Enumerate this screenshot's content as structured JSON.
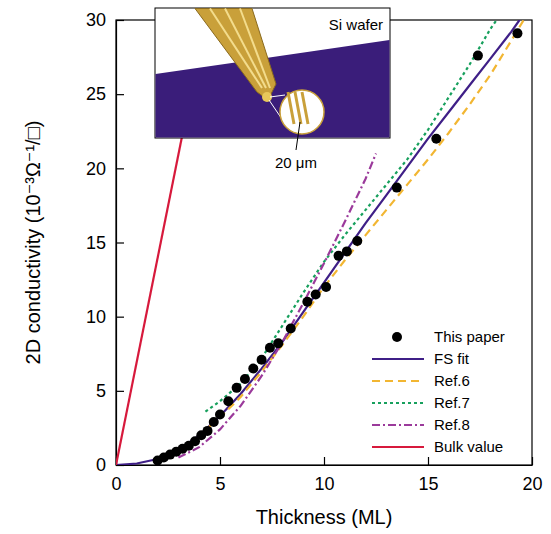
{
  "chart_data": {
    "type": "scatter",
    "x_label": "Thickness (ML)",
    "y_label": "2D conductivity (10⁻³Ω⁻¹/□)",
    "xlim": [
      0,
      20
    ],
    "ylim": [
      0,
      30
    ],
    "xticks": [
      0,
      5,
      10,
      15,
      20
    ],
    "yticks": [
      0,
      5,
      10,
      15,
      20,
      25,
      30
    ],
    "grid": false,
    "legend": "lower right",
    "annotations": [
      {
        "text": "Si wafer"
      },
      {
        "text": "20 μm"
      }
    ],
    "series": [
      {
        "name": "This paper",
        "type": "scatter",
        "color": "#000000",
        "marker": "circle",
        "x": [
          2.0,
          2.3,
          2.6,
          2.9,
          3.2,
          3.5,
          3.8,
          4.1,
          4.4,
          4.7,
          5.0,
          5.4,
          5.8,
          6.2,
          6.6,
          7.0,
          7.4,
          7.8,
          8.4,
          9.2,
          9.6,
          10.1,
          10.7,
          11.1,
          11.6,
          13.5,
          15.4,
          17.4,
          19.3
        ],
        "values": [
          0.3,
          0.5,
          0.7,
          0.9,
          1.1,
          1.3,
          1.6,
          2.0,
          2.3,
          2.9,
          3.4,
          4.3,
          5.2,
          5.8,
          6.5,
          7.1,
          7.9,
          8.2,
          9.2,
          11.0,
          11.5,
          12.0,
          14.1,
          14.4,
          15.1,
          18.7,
          22.0,
          27.6,
          29.1
        ]
      },
      {
        "name": "FS fit",
        "type": "line",
        "color": "#3f1f87",
        "line_style": "solid",
        "x": [
          0,
          1,
          2,
          3,
          4,
          5,
          6,
          7,
          8,
          9,
          10,
          11,
          12,
          13,
          14,
          15,
          16,
          17,
          18,
          19,
          19.4
        ],
        "values": [
          0,
          0.1,
          0.4,
          1.0,
          2.0,
          3.3,
          4.8,
          6.5,
          8.3,
          10.3,
          12.3,
          14.3,
          16.3,
          18.2,
          20.1,
          22.0,
          23.8,
          25.6,
          27.4,
          29.2,
          30
        ]
      },
      {
        "name": "Ref.6",
        "type": "line",
        "color": "#f2b632",
        "line_style": "dashed",
        "x": [
          4,
          5,
          6,
          7,
          8,
          9,
          10,
          11,
          12,
          13,
          14,
          15,
          16,
          17,
          18,
          19,
          19.6
        ],
        "values": [
          2.0,
          3.2,
          4.6,
          6.3,
          8.1,
          10.0,
          12.0,
          13.8,
          15.5,
          17.2,
          18.9,
          20.6,
          22.4,
          24.3,
          26.3,
          28.6,
          30
        ]
      },
      {
        "name": "Ref.7",
        "type": "line",
        "color": "#17a05d",
        "line_style": "dotted",
        "x": [
          4.3,
          5,
          6,
          7,
          8,
          9,
          10,
          11,
          12,
          13,
          14,
          15,
          16,
          17,
          18,
          18.3
        ],
        "values": [
          3.6,
          4.3,
          5.5,
          7.2,
          9.4,
          11.6,
          13.7,
          15.5,
          17.2,
          18.9,
          20.6,
          22.6,
          24.8,
          27.0,
          29.4,
          30
        ]
      },
      {
        "name": "Ref.8",
        "type": "line",
        "color": "#9b3a9b",
        "line_style": "dashdot",
        "x": [
          3,
          4,
          5,
          6,
          7,
          8,
          9,
          10,
          11,
          12,
          12.5
        ],
        "values": [
          0.5,
          1.2,
          2.4,
          4.0,
          6.0,
          8.3,
          10.9,
          13.6,
          16.4,
          19.3,
          21.0
        ]
      },
      {
        "name": "Bulk value",
        "type": "line",
        "color": "#d7193c",
        "line_style": "solid",
        "x": [
          0,
          4.3
        ],
        "values": [
          0,
          30
        ]
      }
    ]
  }
}
